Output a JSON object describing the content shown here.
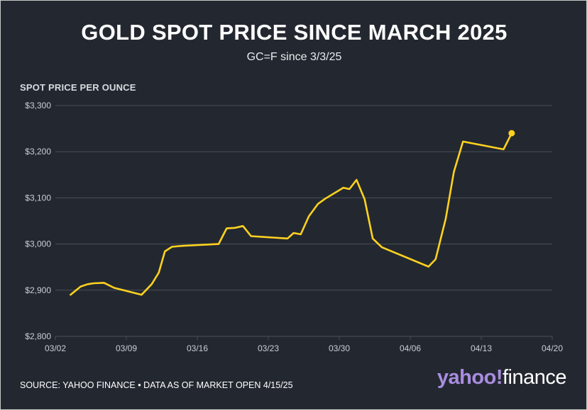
{
  "header": {
    "title": "GOLD SPOT PRICE SINCE MARCH 2025",
    "subtitle": "GC=F since 3/3/25",
    "y_axis_title": "SPOT PRICE PER OUNCE"
  },
  "footer": {
    "source": "SOURCE: YAHOO FINANCE • DATA AS OF MARKET OPEN 4/15/25",
    "brand_part1": "yahoo!",
    "brand_part2": "finance"
  },
  "colors": {
    "background": "#232830",
    "line": "#ffd21f",
    "grid": "#4a4f57",
    "text": "#ffffff"
  },
  "chart_data": {
    "type": "line",
    "title": "GOLD SPOT PRICE SINCE MARCH 2025",
    "subtitle": "GC=F since 3/3/25",
    "ylabel": "SPOT PRICE PER OUNCE",
    "xlabel": "",
    "x_unit": "days since 03/02/25",
    "xlim": [
      0,
      49
    ],
    "ylim": [
      2800,
      3300
    ],
    "y_ticks": [
      2800,
      2900,
      3000,
      3100,
      3200,
      3300
    ],
    "y_tick_labels": [
      "$2,800",
      "$2,900",
      "$3,000",
      "$3,100",
      "$3,200",
      "$3,300"
    ],
    "x_ticks": [
      0,
      7,
      14,
      21,
      28,
      35,
      42,
      49
    ],
    "x_tick_labels": [
      "03/02",
      "03/09",
      "03/16",
      "03/23",
      "03/30",
      "04/06",
      "04/13",
      "04/20"
    ],
    "grid": "horizontal",
    "series": [
      {
        "name": "Gold spot price (GC=F)",
        "x": [
          1.5,
          2.5,
          3.2,
          3.8,
          4.8,
          5.8,
          8.5,
          9.5,
          10.2,
          10.8,
          11.5,
          12.5,
          16.1,
          16.9,
          17.7,
          18.5,
          19.3,
          22.9,
          23.5,
          24.2,
          25.0,
          25.9,
          26.6,
          28.4,
          29.0,
          29.7,
          30.5,
          31.3,
          32.2,
          36.8,
          37.5,
          38.5,
          39.3,
          40.2,
          44.2,
          45.0
        ],
        "y": [
          2890,
          2908,
          2913,
          2915,
          2916,
          2905,
          2890,
          2913,
          2938,
          2984,
          2994,
          2996,
          3000,
          3034,
          3035,
          3039,
          3017,
          3012,
          3024,
          3021,
          3060,
          3087,
          3098,
          3122,
          3119,
          3139,
          3097,
          3012,
          2993,
          2951,
          2967,
          3055,
          3156,
          3222,
          3205,
          3240
        ]
      }
    ],
    "end_marker": {
      "x": 45.0,
      "y": 3240
    }
  }
}
